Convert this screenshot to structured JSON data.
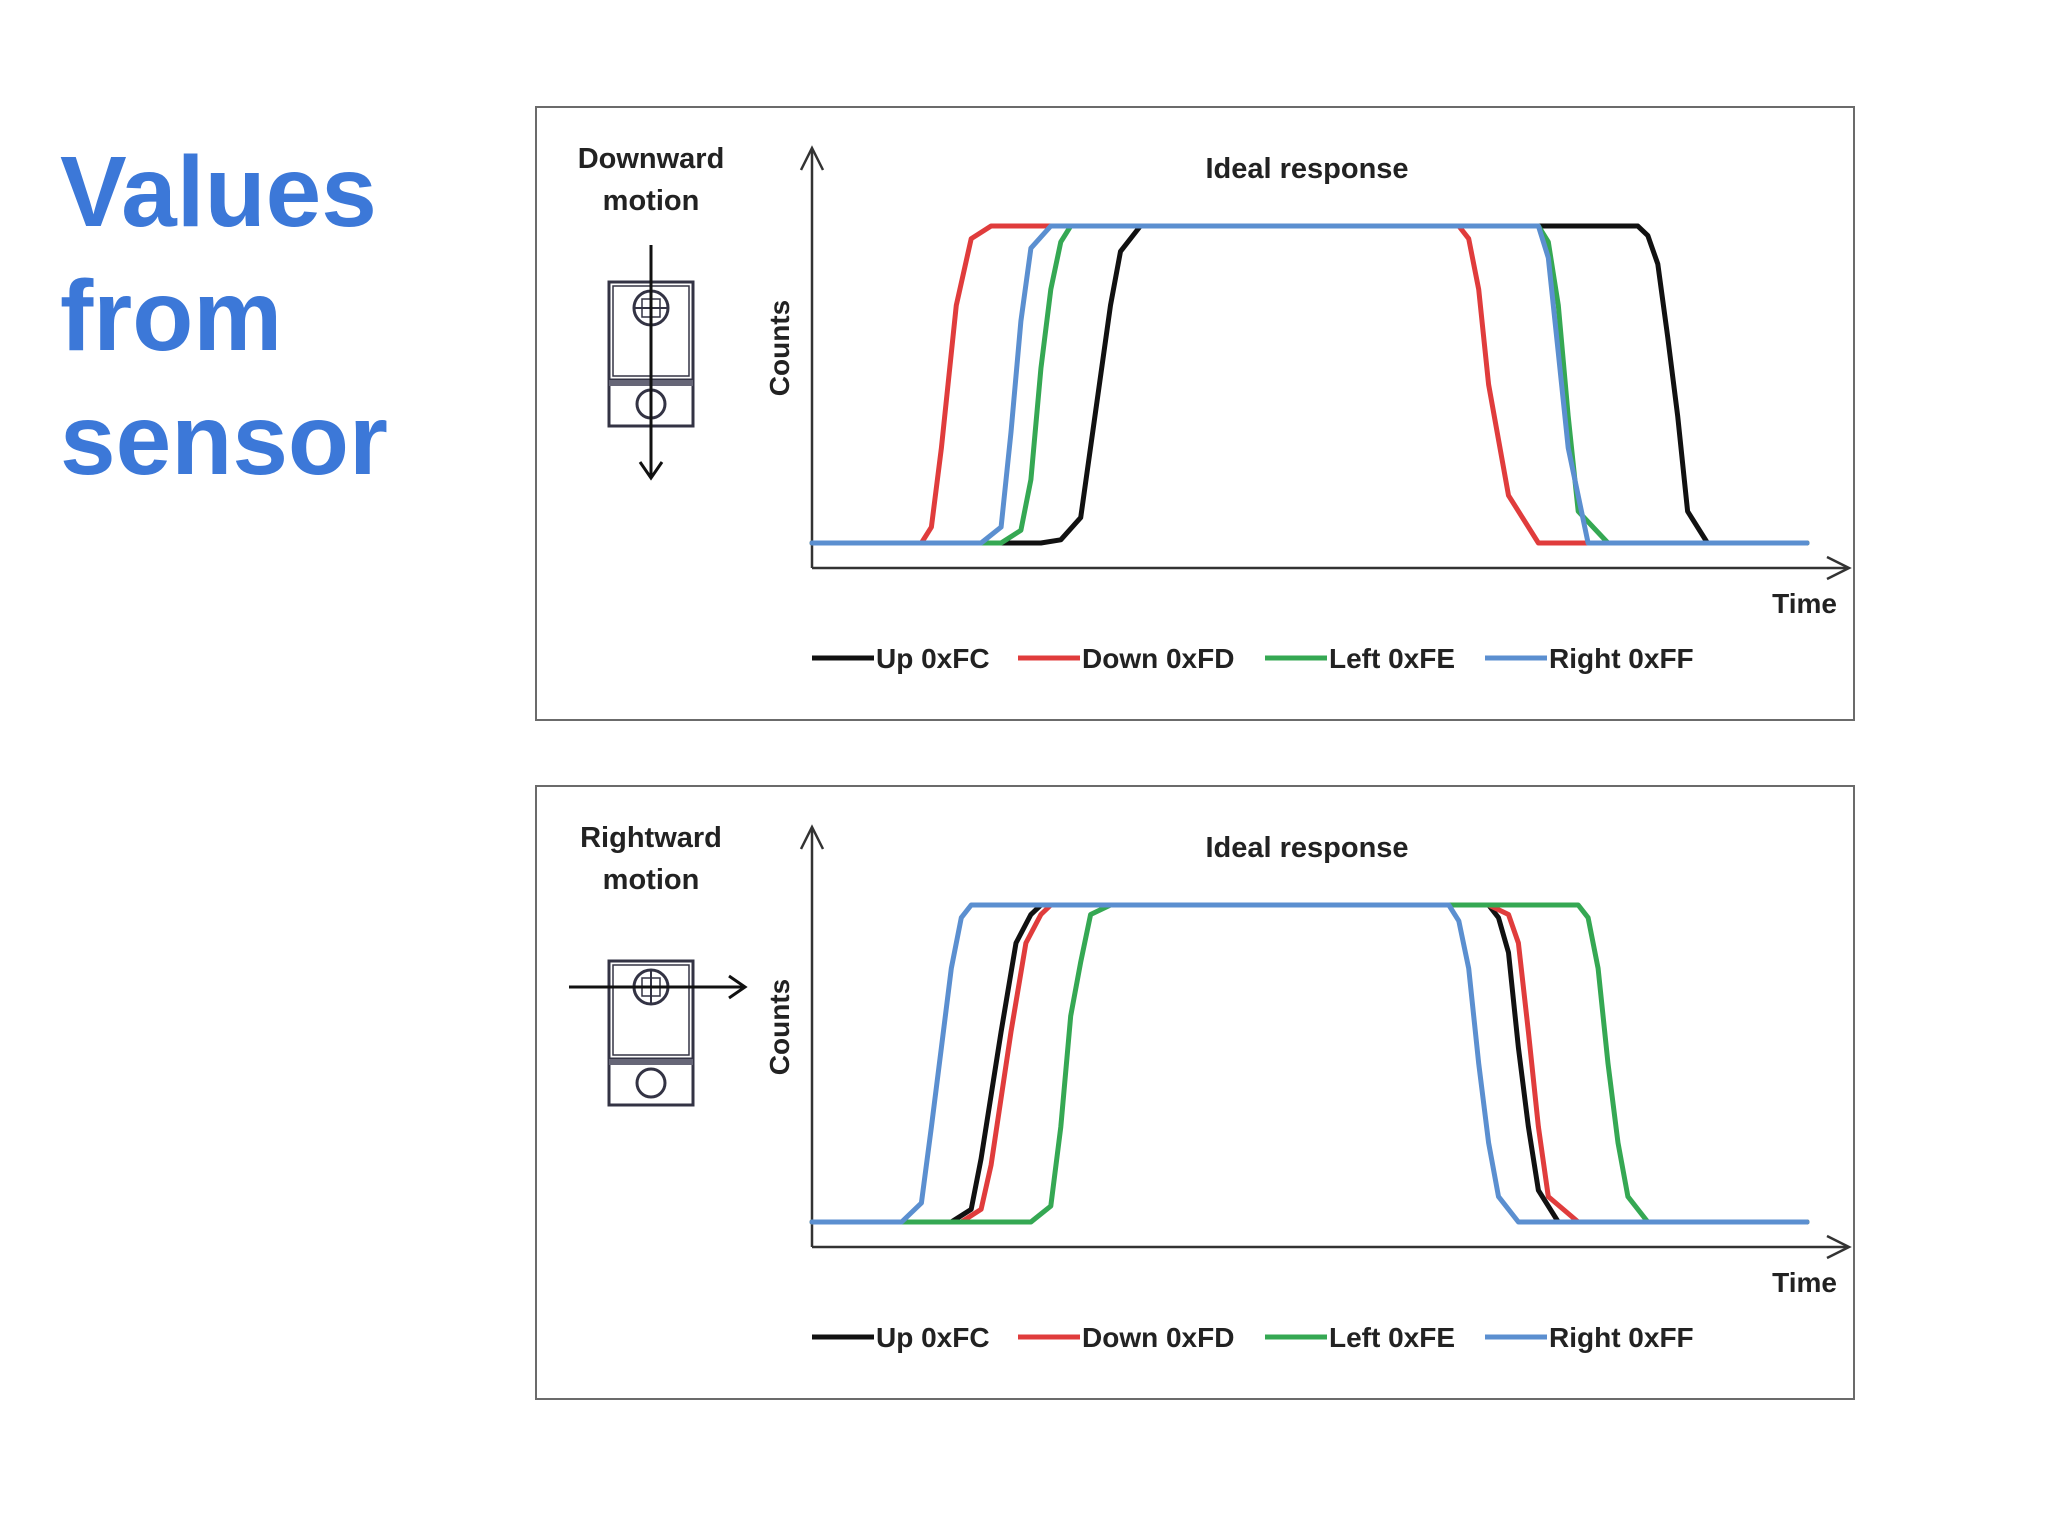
{
  "slide": {
    "title_lines": [
      "Values",
      "from",
      "sensor"
    ],
    "accent_color": "#3c78d8"
  },
  "chart_data": [
    {
      "type": "line",
      "title": "Ideal response",
      "xlabel": "Time",
      "ylabel": "Counts",
      "motion_label_lines": [
        "Downward",
        "motion"
      ],
      "motion_direction": "down",
      "xlim": [
        0,
        100
      ],
      "ylim": [
        0,
        100
      ],
      "grid": false,
      "legend_position": "bottom",
      "series": [
        {
          "name": "Up 0xFC",
          "color": "#111111",
          "x": [
            0,
            23,
            25,
            27,
            30,
            31,
            33,
            83,
            84,
            85,
            86,
            87,
            88,
            90,
            100
          ],
          "y": [
            0,
            0,
            1,
            8,
            75,
            92,
            100,
            100,
            97,
            88,
            65,
            40,
            10,
            0,
            0
          ]
        },
        {
          "name": "Down 0xFD",
          "color": "#e03c3c",
          "x": [
            0,
            11,
            12,
            13,
            14.5,
            16,
            18,
            65,
            66,
            67,
            68,
            70,
            73,
            100
          ],
          "y": [
            0,
            0,
            5,
            30,
            75,
            96,
            100,
            100,
            96,
            80,
            50,
            15,
            0,
            0
          ]
        },
        {
          "name": "Left 0xFE",
          "color": "#35a853",
          "x": [
            0,
            19,
            21,
            22,
            23,
            24,
            25,
            26,
            73,
            74,
            75,
            76,
            77,
            80,
            100
          ],
          "y": [
            0,
            0,
            4,
            20,
            55,
            80,
            95,
            100,
            100,
            95,
            75,
            40,
            10,
            0,
            0
          ]
        },
        {
          "name": "Right 0xFF",
          "color": "#5b8fd0",
          "x": [
            0,
            17,
            19,
            20,
            21,
            22,
            24,
            73,
            74,
            75,
            76,
            78,
            100
          ],
          "y": [
            0,
            0,
            5,
            35,
            70,
            93,
            100,
            100,
            90,
            60,
            30,
            0,
            0
          ]
        }
      ]
    },
    {
      "type": "line",
      "title": "Ideal response",
      "xlabel": "Time",
      "ylabel": "Counts",
      "motion_label_lines": [
        "Rightward",
        "motion"
      ],
      "motion_direction": "right",
      "xlim": [
        0,
        100
      ],
      "ylim": [
        0,
        100
      ],
      "grid": false,
      "legend_position": "bottom",
      "series": [
        {
          "name": "Up 0xFC",
          "color": "#111111",
          "x": [
            0,
            14,
            16,
            17,
            19,
            20.5,
            22,
            23,
            68,
            69,
            70,
            71,
            72,
            73,
            75,
            100
          ],
          "y": [
            0,
            0,
            4,
            20,
            60,
            88,
            97,
            100,
            100,
            96,
            85,
            55,
            30,
            10,
            0,
            0
          ]
        },
        {
          "name": "Down 0xFD",
          "color": "#e03c3c",
          "x": [
            0,
            15,
            17,
            18,
            20,
            21.5,
            23,
            24,
            68,
            70,
            71,
            72,
            73,
            74,
            77,
            100
          ],
          "y": [
            0,
            0,
            4,
            18,
            60,
            88,
            97,
            100,
            100,
            97,
            88,
            60,
            30,
            8,
            0,
            0
          ]
        },
        {
          "name": "Left 0xFE",
          "color": "#35a853",
          "x": [
            0,
            22,
            24,
            25,
            26,
            27,
            28,
            30,
            77,
            78,
            79,
            80,
            81,
            82,
            84,
            100
          ],
          "y": [
            0,
            0,
            5,
            30,
            65,
            82,
            97,
            100,
            100,
            96,
            80,
            50,
            25,
            8,
            0,
            0
          ]
        },
        {
          "name": "Right 0xFF",
          "color": "#5b8fd0",
          "x": [
            0,
            9,
            11,
            12,
            13,
            14,
            15,
            16,
            64,
            65,
            66,
            67,
            68,
            69,
            71,
            100
          ],
          "y": [
            0,
            0,
            6,
            30,
            55,
            80,
            96,
            100,
            100,
            95,
            80,
            50,
            25,
            8,
            0,
            0
          ]
        }
      ]
    }
  ]
}
